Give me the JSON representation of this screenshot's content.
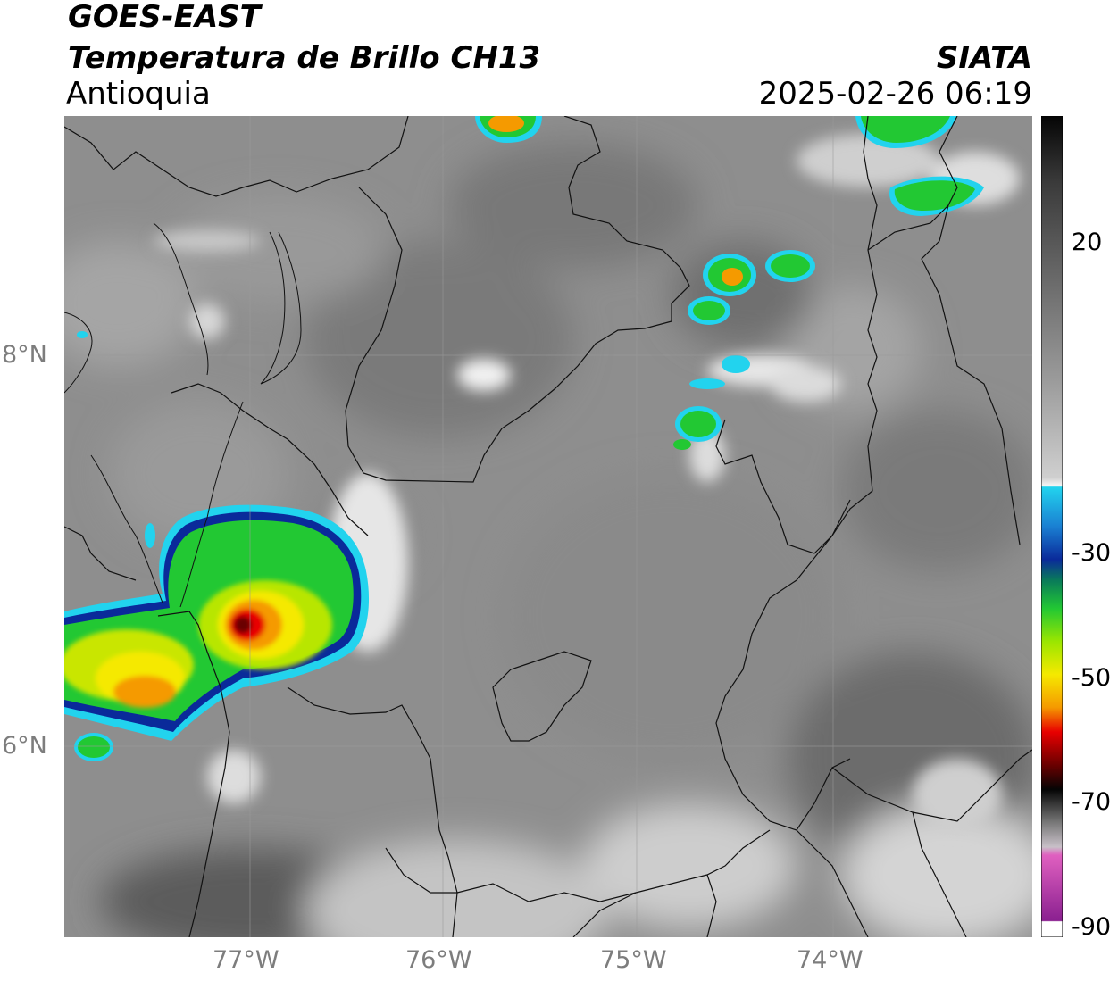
{
  "header": {
    "satellite": "GOES-EAST",
    "product": "Temperatura de Brillo CH13",
    "region": "Antioquia",
    "source": "SIATA",
    "timestamp": "2025-02-26 06:19"
  },
  "map_axes": {
    "longitude_labels": [
      "77°W",
      "76°W",
      "75°W",
      "74°W"
    ],
    "latitude_labels": [
      "8°N",
      "6°N"
    ]
  },
  "colorbar": {
    "tick_labels": [
      "20",
      "-30",
      "-50",
      "-70",
      "-90"
    ],
    "colors": {
      "cyan": "#22d3ee",
      "blue": "#0a2a9a",
      "green": "#22c833",
      "yellow": "#f5e900",
      "orange": "#f59a00",
      "red": "#e80000",
      "dark_red": "#6b0000",
      "black": "#050505",
      "magenta": "#c23bb4"
    }
  }
}
